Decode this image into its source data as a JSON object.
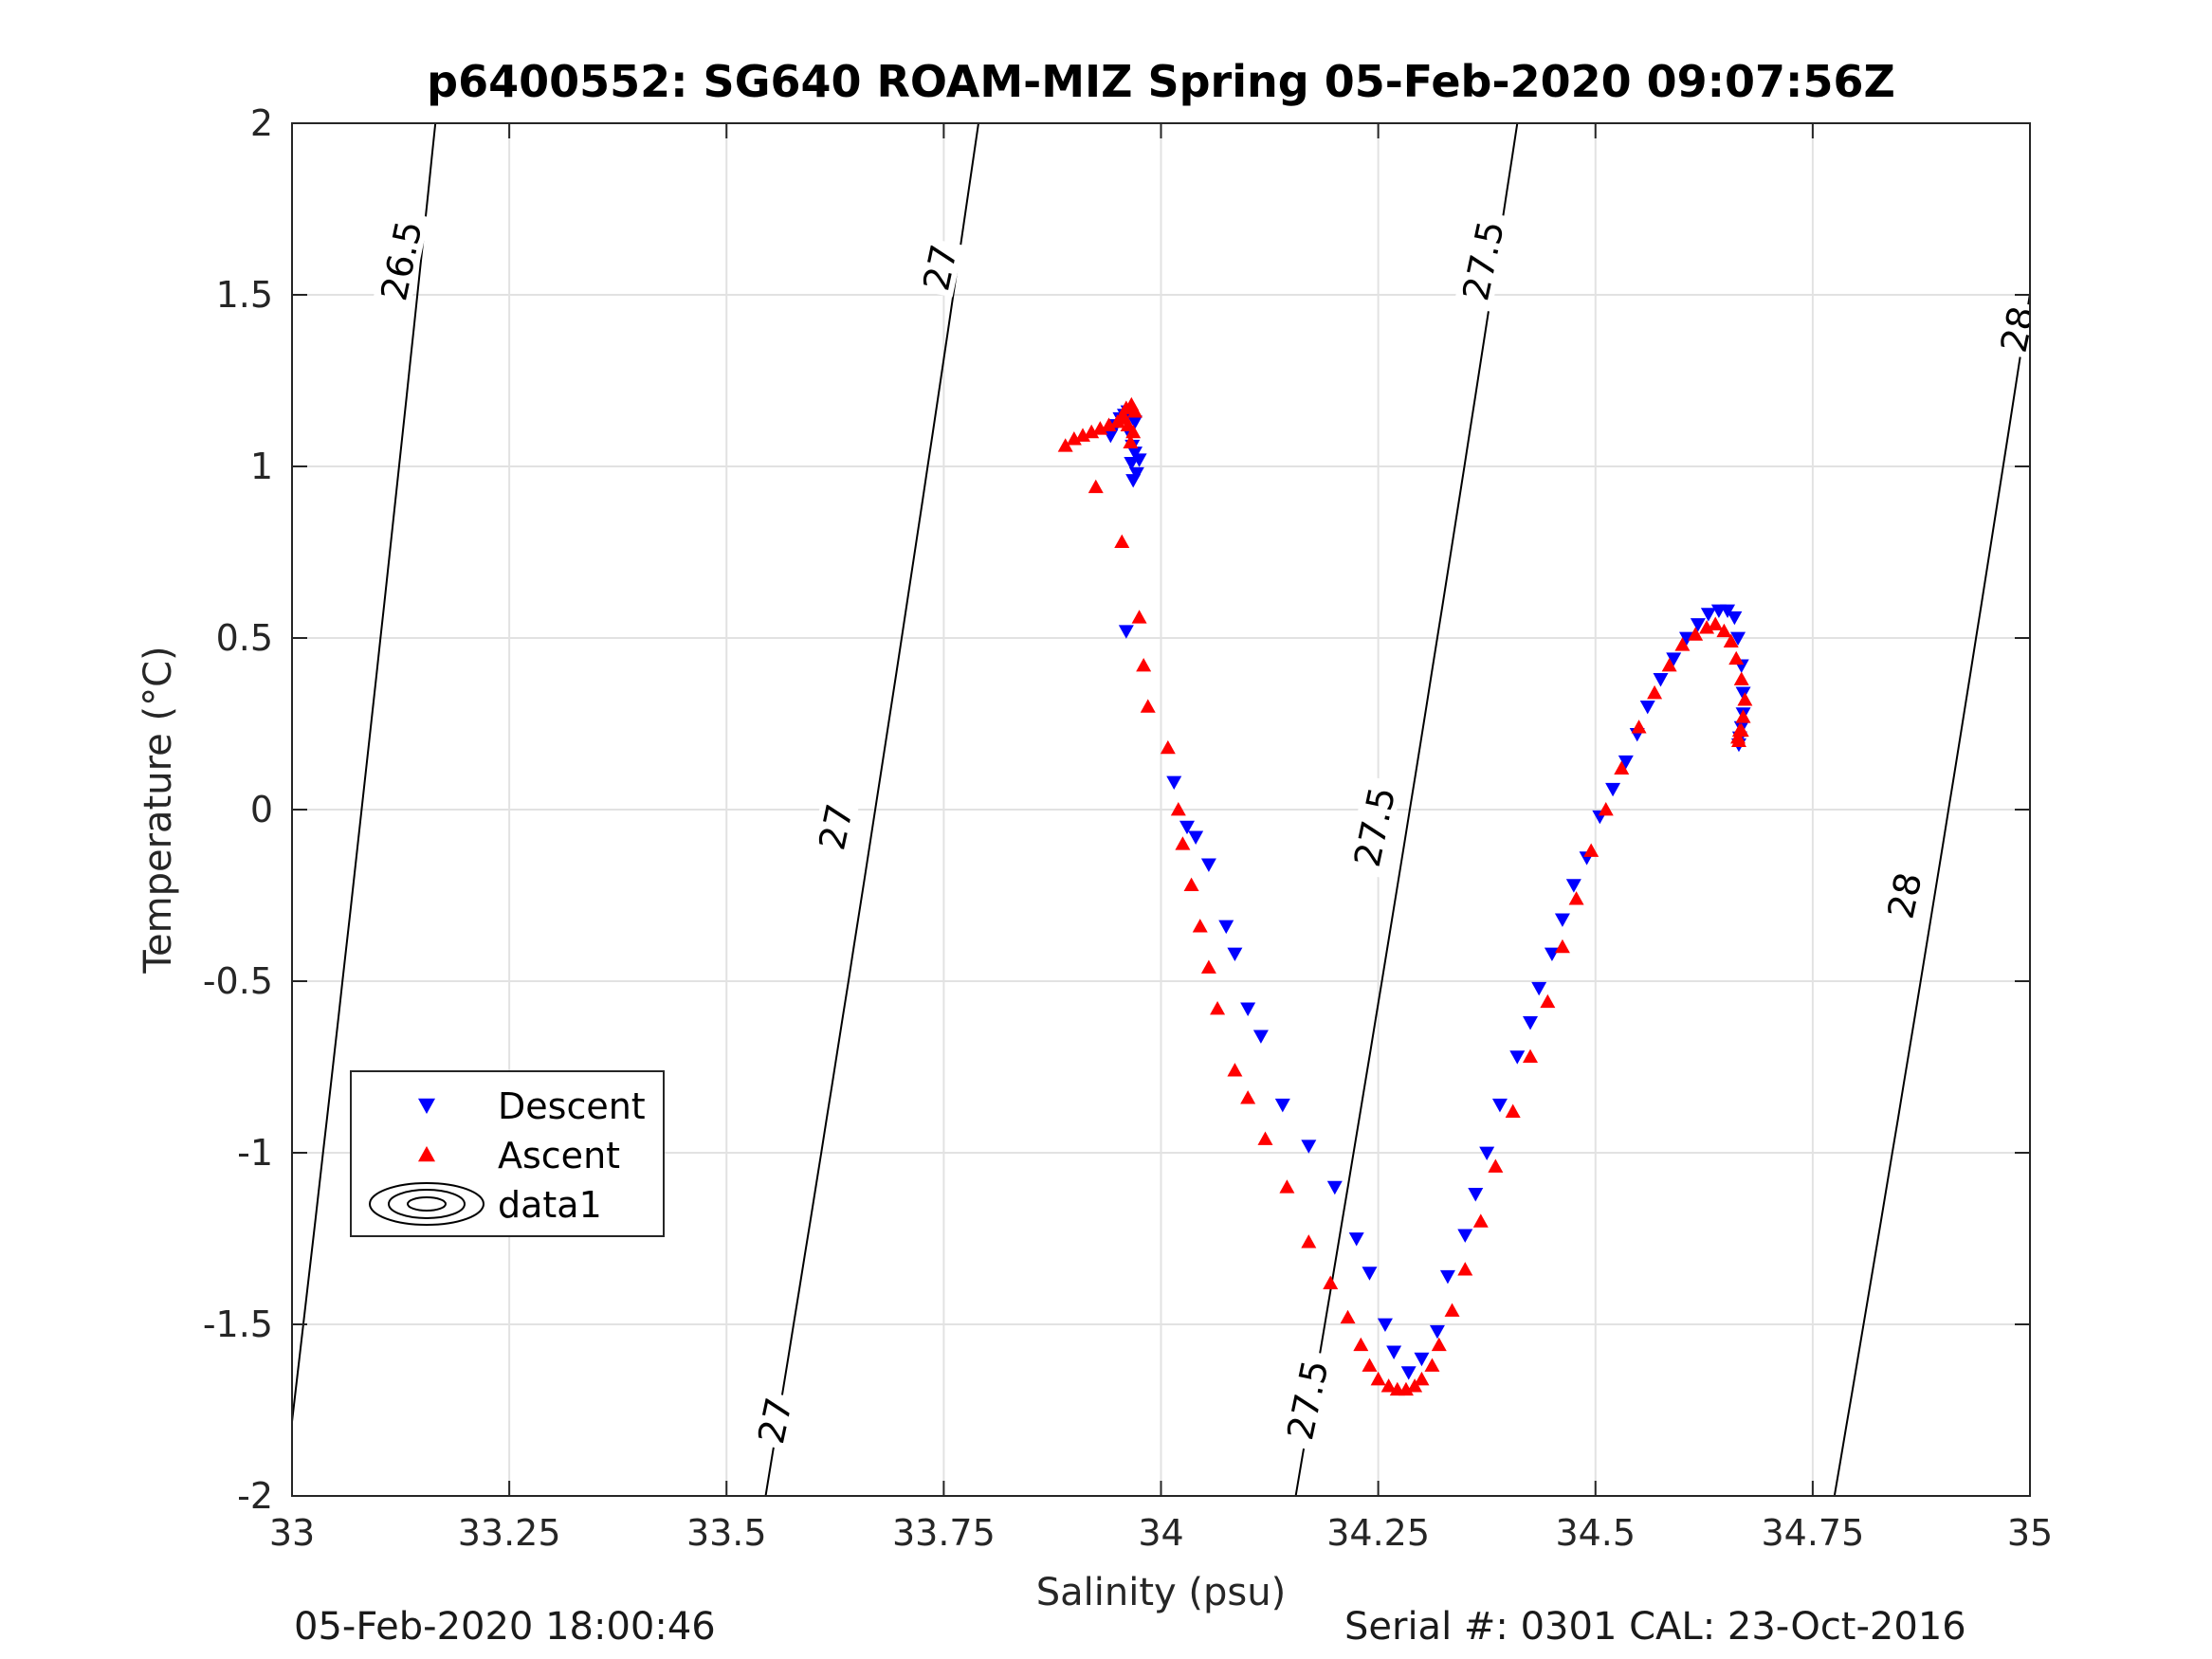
{
  "chart_data": {
    "type": "scatter",
    "title": "p6400552: SG640 ROAM-MIZ Spring 05-Feb-2020 09:07:56Z",
    "xlabel": "Salinity (psu)",
    "ylabel": "Temperature (°C)",
    "xlim": [
      33,
      35
    ],
    "ylim": [
      -2,
      2
    ],
    "xticks": [
      33,
      33.25,
      33.5,
      33.75,
      34,
      34.25,
      34.5,
      34.75,
      35
    ],
    "xtick_labels": [
      "33",
      "33.25",
      "33.5",
      "33.75",
      "34",
      "34.25",
      "34.5",
      "34.75",
      "35"
    ],
    "yticks": [
      -2,
      -1.5,
      -1,
      -0.5,
      0,
      0.5,
      1,
      1.5,
      2
    ],
    "ytick_labels": [
      "-2",
      "-1.5",
      "-1",
      "-0.5",
      "0",
      "0.5",
      "1",
      "1.5",
      "2"
    ],
    "grid": true,
    "legend_position": "lower-left",
    "series": [
      {
        "name": "Descent",
        "marker": "triangle-down",
        "color": "#0000ff",
        "x": [
          33.963,
          33.967,
          33.966,
          33.968,
          33.97,
          33.962,
          33.958,
          33.953,
          33.948,
          33.942,
          33.97,
          33.972,
          33.975,
          33.96,
          34.015,
          34.03,
          34.04,
          34.055,
          34.075,
          34.085,
          34.1,
          34.115,
          34.14,
          34.17,
          34.2,
          34.225,
          34.24,
          34.258,
          34.268,
          34.285,
          34.3,
          34.318,
          34.33,
          34.35,
          34.362,
          34.375,
          34.39,
          34.41,
          34.425,
          34.435,
          34.45,
          34.462,
          34.475,
          34.49,
          34.505,
          34.52,
          34.535,
          34.548,
          34.56,
          34.575,
          34.59,
          34.605,
          34.618,
          34.63,
          34.642,
          34.652,
          34.66,
          34.664,
          34.668,
          34.67,
          34.67,
          34.668,
          34.666,
          34.665
        ],
        "y": [
          1.1,
          1.06,
          1.01,
          0.96,
          1.13,
          1.16,
          1.15,
          1.14,
          1.12,
          1.09,
          1.04,
          0.98,
          1.02,
          0.52,
          0.08,
          -0.05,
          -0.08,
          -0.16,
          -0.34,
          -0.42,
          -0.58,
          -0.66,
          -0.86,
          -0.98,
          -1.1,
          -1.25,
          -1.35,
          -1.5,
          -1.58,
          -1.64,
          -1.6,
          -1.52,
          -1.36,
          -1.24,
          -1.12,
          -1.0,
          -0.86,
          -0.72,
          -0.62,
          -0.52,
          -0.42,
          -0.32,
          -0.22,
          -0.14,
          -0.02,
          0.06,
          0.14,
          0.22,
          0.3,
          0.38,
          0.44,
          0.5,
          0.54,
          0.57,
          0.58,
          0.58,
          0.56,
          0.5,
          0.42,
          0.34,
          0.28,
          0.24,
          0.21,
          0.19
        ]
      },
      {
        "name": "Ascent",
        "marker": "triangle-up",
        "color": "#ff0000",
        "x": [
          33.89,
          33.9,
          33.91,
          33.92,
          33.93,
          33.94,
          33.95,
          33.956,
          33.96,
          33.966,
          33.962,
          33.958,
          33.97,
          33.968,
          33.965,
          33.925,
          33.955,
          33.975,
          33.98,
          33.985,
          34.008,
          34.02,
          34.025,
          34.035,
          34.045,
          34.055,
          34.065,
          34.085,
          34.1,
          34.12,
          34.145,
          34.17,
          34.195,
          34.215,
          34.23,
          34.24,
          34.25,
          34.262,
          34.272,
          34.282,
          34.292,
          34.3,
          34.312,
          34.32,
          34.335,
          34.35,
          34.368,
          34.385,
          34.405,
          34.425,
          34.445,
          34.462,
          34.478,
          34.495,
          34.512,
          34.53,
          34.55,
          34.568,
          34.585,
          34.6,
          34.615,
          34.628,
          34.638,
          34.648,
          34.656,
          34.662,
          34.668,
          34.672,
          34.67,
          34.666,
          34.664,
          34.665,
          34.668
        ],
        "y": [
          1.06,
          1.08,
          1.09,
          1.1,
          1.11,
          1.12,
          1.13,
          1.15,
          1.17,
          1.18,
          1.12,
          1.14,
          1.16,
          1.1,
          1.07,
          0.94,
          0.78,
          0.56,
          0.42,
          0.3,
          0.18,
          0.0,
          -0.1,
          -0.22,
          -0.34,
          -0.46,
          -0.58,
          -0.76,
          -0.84,
          -0.96,
          -1.1,
          -1.26,
          -1.38,
          -1.48,
          -1.56,
          -1.62,
          -1.66,
          -1.68,
          -1.69,
          -1.69,
          -1.68,
          -1.66,
          -1.62,
          -1.56,
          -1.46,
          -1.34,
          -1.2,
          -1.04,
          -0.88,
          -0.72,
          -0.56,
          -0.4,
          -0.26,
          -0.12,
          0.0,
          0.12,
          0.24,
          0.34,
          0.42,
          0.48,
          0.51,
          0.53,
          0.54,
          0.52,
          0.49,
          0.44,
          0.38,
          0.32,
          0.27,
          0.23,
          0.21,
          0.2,
          0.23
        ]
      }
    ],
    "legend_entries": [
      "Descent",
      "Ascent",
      "data1"
    ],
    "contours": [
      {
        "level": "26.5",
        "x_at_top": 33.165,
        "x_at_bottom": 32.99
      },
      {
        "level": "27",
        "x_at_top": 33.79,
        "x_at_bottom": 33.545
      },
      {
        "level": "27.5",
        "x_at_top": 34.41,
        "x_at_bottom": 34.155
      },
      {
        "level": "28",
        "x_at_top": 35.03,
        "x_at_bottom": 34.775
      }
    ],
    "contour_labels": [
      {
        "text": "26.5",
        "x": 33.125,
        "y": 1.6
      },
      {
        "text": "27",
        "x": 33.745,
        "y": 1.58
      },
      {
        "text": "27",
        "x": 33.625,
        "y": -0.05
      },
      {
        "text": "27",
        "x": 33.555,
        "y": -1.78
      },
      {
        "text": "27.5",
        "x": 34.37,
        "y": 1.6
      },
      {
        "text": "27.5",
        "x": 34.245,
        "y": -0.05
      },
      {
        "text": "27.5",
        "x": 34.168,
        "y": -1.72
      },
      {
        "text": "28",
        "x": 34.985,
        "y": 1.4
      },
      {
        "text": "28",
        "x": 34.855,
        "y": -0.25
      }
    ]
  },
  "footer": {
    "left": "05-Feb-2020 18:00:46",
    "right": "Serial #: 0301  CAL: 23-Oct-2016"
  }
}
